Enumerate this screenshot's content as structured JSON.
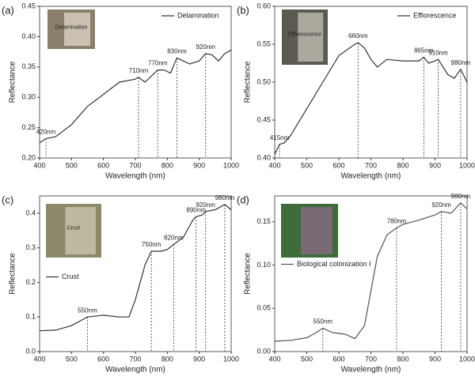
{
  "chart_data": [
    {
      "type": "line",
      "panel": "(a)",
      "inset_label": "Delamination",
      "xlabel": "Wavelength (nm)",
      "ylabel": "Reflectance",
      "xlim": [
        400,
        1000
      ],
      "xticks": [
        400,
        500,
        600,
        700,
        800,
        900,
        1000
      ],
      "ylim": [
        0.2,
        0.45
      ],
      "yticks": [
        {
          "value": 0.2,
          "label": "0.20"
        },
        {
          "value": 0.25,
          "label": "0.25"
        },
        {
          "value": 0.3,
          "label": "0.30"
        },
        {
          "value": 0.35,
          "label": "0.35"
        },
        {
          "value": 0.4,
          "label": "0.40"
        },
        {
          "value": 0.45,
          "label": "0.45"
        }
      ],
      "legend": "upper right",
      "x": [
        400,
        420,
        450,
        500,
        550,
        600,
        650,
        700,
        710,
        730,
        750,
        770,
        790,
        810,
        830,
        850,
        870,
        900,
        920,
        940,
        960,
        980,
        1000
      ],
      "series": [
        {
          "name": "Delamination",
          "color": "#333333",
          "values": [
            0.225,
            0.232,
            0.235,
            0.255,
            0.285,
            0.305,
            0.325,
            0.33,
            0.333,
            0.325,
            0.335,
            0.345,
            0.345,
            0.34,
            0.365,
            0.36,
            0.355,
            0.36,
            0.372,
            0.37,
            0.36,
            0.372,
            0.378
          ]
        }
      ],
      "annotations": [
        {
          "text": "420nm",
          "x": 420,
          "y": 0.232
        },
        {
          "text": "710nm",
          "x": 710,
          "y": 0.333
        },
        {
          "text": "770nm",
          "x": 770,
          "y": 0.345
        },
        {
          "text": "830nm",
          "x": 830,
          "y": 0.365
        },
        {
          "text": "920nm",
          "x": 920,
          "y": 0.372
        }
      ]
    },
    {
      "type": "line",
      "panel": "(b)",
      "inset_label": "Efflorescence",
      "xlabel": "Wavelength (nm)",
      "ylabel": "Reflectance",
      "xlim": [
        400,
        1000
      ],
      "xticks": [
        400,
        500,
        600,
        700,
        800,
        900,
        1000
      ],
      "ylim": [
        0.4,
        0.6
      ],
      "yticks": [
        {
          "value": 0.4,
          "label": "0.40"
        },
        0.45,
        {
          "value": 0.5,
          "label": "0.50"
        },
        0.55,
        {
          "value": 0.6,
          "label": "0.60"
        }
      ],
      "legend": "upper right",
      "x": [
        400,
        415,
        430,
        450,
        500,
        550,
        600,
        650,
        660,
        680,
        700,
        720,
        750,
        800,
        850,
        865,
        880,
        900,
        910,
        940,
        960,
        980,
        1000
      ],
      "series": [
        {
          "name": "Efflorescence",
          "color": "#333333",
          "values": [
            0.405,
            0.418,
            0.42,
            0.43,
            0.465,
            0.5,
            0.535,
            0.55,
            0.552,
            0.545,
            0.53,
            0.52,
            0.53,
            0.528,
            0.528,
            0.533,
            0.525,
            0.528,
            0.53,
            0.51,
            0.505,
            0.517,
            0.5
          ]
        }
      ],
      "annotations": [
        {
          "text": "415nm",
          "x": 415,
          "y": 0.418
        },
        {
          "text": "660nm",
          "x": 660,
          "y": 0.552
        },
        {
          "text": "865nm",
          "x": 865,
          "y": 0.533
        },
        {
          "text": "910nm",
          "x": 910,
          "y": 0.53
        },
        {
          "text": "980nm",
          "x": 980,
          "y": 0.517
        }
      ]
    },
    {
      "type": "line",
      "panel": "(c)",
      "inset_label": "Crust",
      "xlabel": "Wavelength (nm)",
      "ylabel": "Reflectance",
      "xlim": [
        400,
        1000
      ],
      "xticks": [
        400,
        500,
        600,
        700,
        800,
        900,
        1000
      ],
      "ylim": [
        0,
        0.45
      ],
      "yticks": [
        {
          "value": 0,
          "label": "0.0"
        },
        0.1,
        0.2,
        0.3,
        0.4
      ],
      "legend": "center left",
      "x": [
        400,
        450,
        500,
        530,
        550,
        600,
        650,
        680,
        700,
        730,
        750,
        780,
        800,
        820,
        850,
        880,
        890,
        910,
        920,
        950,
        980,
        1000
      ],
      "series": [
        {
          "name": "Crust",
          "color": "#333333",
          "values": [
            0.06,
            0.062,
            0.075,
            0.09,
            0.1,
            0.105,
            0.1,
            0.1,
            0.15,
            0.25,
            0.29,
            0.29,
            0.295,
            0.31,
            0.33,
            0.38,
            0.39,
            0.395,
            0.405,
            0.41,
            0.425,
            0.41
          ]
        }
      ],
      "annotations": [
        {
          "text": "550nm",
          "x": 550,
          "y": 0.1
        },
        {
          "text": "750nm",
          "x": 750,
          "y": 0.29
        },
        {
          "text": "820nm",
          "x": 820,
          "y": 0.31
        },
        {
          "text": "890nm",
          "x": 890,
          "y": 0.39
        },
        {
          "text": "920nm",
          "x": 920,
          "y": 0.405
        },
        {
          "text": "980nm",
          "x": 980,
          "y": 0.425
        }
      ]
    },
    {
      "type": "line",
      "panel": "(d)",
      "xlabel": "Wavelength (nm)",
      "ylabel": "Reflectance",
      "xlim": [
        400,
        1000
      ],
      "xticks": [
        400,
        500,
        600,
        700,
        800,
        900,
        1000
      ],
      "ylim": [
        0,
        0.18
      ],
      "yticks": [
        {
          "value": 0,
          "label": "0.00"
        },
        0.05,
        {
          "value": 0.1,
          "label": "0.10"
        },
        0.15
      ],
      "legend": "center left",
      "x": [
        400,
        450,
        500,
        530,
        550,
        580,
        620,
        650,
        680,
        700,
        720,
        750,
        780,
        800,
        850,
        900,
        920,
        950,
        980,
        1000
      ],
      "series": [
        {
          "name": "Biological colonization I",
          "color": "#555555",
          "values": [
            0.012,
            0.013,
            0.016,
            0.022,
            0.027,
            0.022,
            0.02,
            0.015,
            0.03,
            0.07,
            0.11,
            0.135,
            0.143,
            0.147,
            0.152,
            0.158,
            0.162,
            0.16,
            0.172,
            0.165
          ]
        }
      ],
      "annotations": [
        {
          "text": "550nm",
          "x": 550,
          "y": 0.027
        },
        {
          "text": "780nm",
          "x": 780,
          "y": 0.143
        },
        {
          "text": "920nm",
          "x": 920,
          "y": 0.162
        },
        {
          "text": "980nm",
          "x": 980,
          "y": 0.172
        }
      ]
    }
  ]
}
